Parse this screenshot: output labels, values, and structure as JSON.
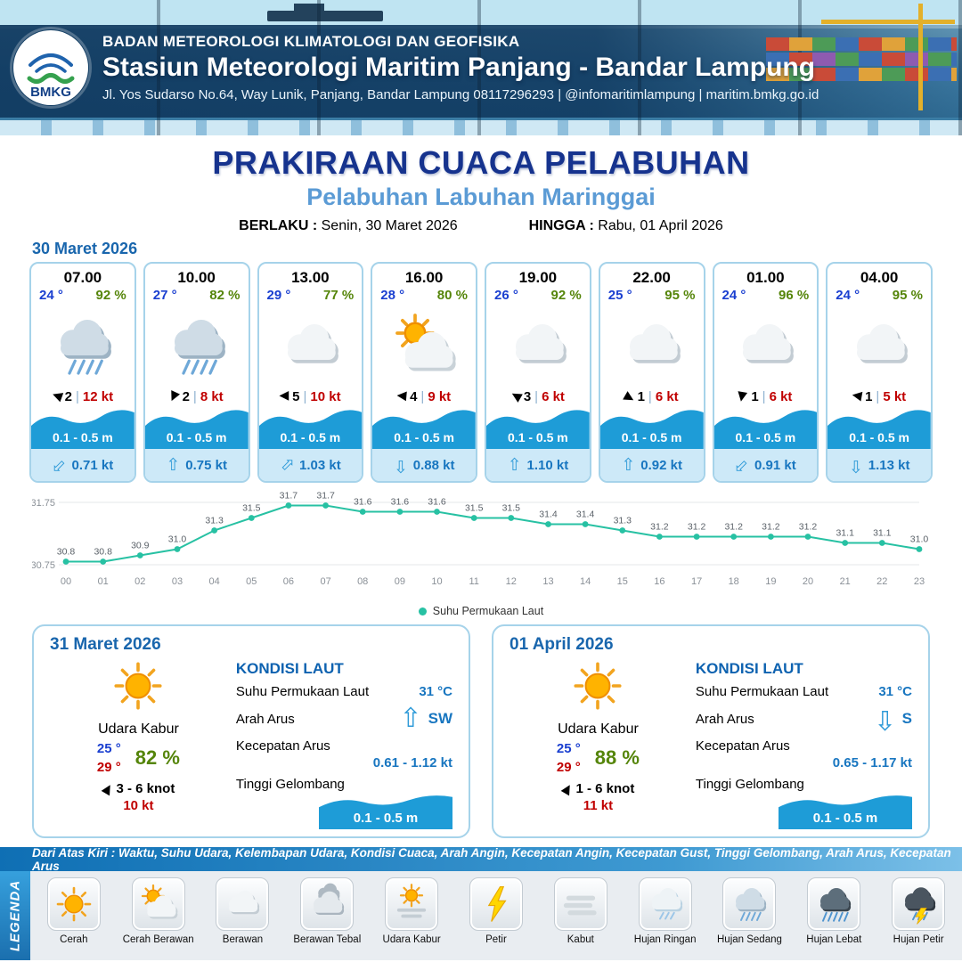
{
  "header": {
    "agency": "BADAN METEOROLOGI KLIMATOLOGI DAN GEOFISIKA",
    "station": "Stasiun Meteorologi Maritim Panjang - Bandar Lampung",
    "address": "Jl. Yos Sudarso No.64, Way Lunik, Panjang, Bandar Lampung 08117296293 | @infomaritimlampung | maritim.bmkg.go.id",
    "logo_text": "BMKG"
  },
  "title": {
    "main": "PRAKIRAAN CUACA PELABUHAN",
    "subtitle": "Pelabuhan Labuhan Maringgai",
    "valid_from_label": "BERLAKU :",
    "valid_from": "Senin, 30 Maret 2026",
    "valid_to_label": "HINGGA :",
    "valid_to": "Rabu, 01 April 2026"
  },
  "forecast_date": "30 Maret 2026",
  "ui": {
    "separator": "|"
  },
  "icons": {
    "triangle": "▶",
    "up_arrow": "⇧"
  },
  "colors": {
    "accent_blue": "#1966ad",
    "wave_blue": "#1e9cd7",
    "temp_blue": "#1a3fd0",
    "humidity_green": "#55850a",
    "gust_red": "#c00000",
    "sst_line": "#27c1a3"
  },
  "cards": [
    {
      "time": "07.00",
      "temp": "24 °",
      "humidity": "92 %",
      "icon": "rain",
      "wind_arrow_deg": 200,
      "wind": "2",
      "gust": "12 kt",
      "wave": "0.1 - 0.5 m",
      "current_arrow_deg": 225,
      "current": "0.71 kt"
    },
    {
      "time": "10.00",
      "temp": "27 °",
      "humidity": "82 %",
      "icon": "rain",
      "wind_arrow_deg": 115,
      "wind": "2",
      "gust": "8 kt",
      "wave": "0.1 - 0.5 m",
      "current_arrow_deg": 0,
      "current": "0.75 kt"
    },
    {
      "time": "13.00",
      "temp": "29 °",
      "humidity": "77 %",
      "icon": "cloudy",
      "wind_arrow_deg": 180,
      "wind": "5",
      "gust": "10 kt",
      "wave": "0.1 - 0.5 m",
      "current_arrow_deg": 45,
      "current": "1.03 kt"
    },
    {
      "time": "16.00",
      "temp": "28 °",
      "humidity": "80 %",
      "icon": "sun-cloud",
      "wind_arrow_deg": 185,
      "wind": "4",
      "gust": "9 kt",
      "wave": "0.1 - 0.5 m",
      "current_arrow_deg": 180,
      "current": "0.88 kt"
    },
    {
      "time": "19.00",
      "temp": "26 °",
      "humidity": "92 %",
      "icon": "cloudy",
      "wind_arrow_deg": 210,
      "wind": "3",
      "gust": "6 kt",
      "wave": "0.1 - 0.5 m",
      "current_arrow_deg": 0,
      "current": "1.10 kt"
    },
    {
      "time": "22.00",
      "temp": "25 °",
      "humidity": "95 %",
      "icon": "cloudy",
      "wind_arrow_deg": 30,
      "wind": "1",
      "gust": "6 kt",
      "wave": "0.1 - 0.5 m",
      "current_arrow_deg": 0,
      "current": "0.92 kt"
    },
    {
      "time": "01.00",
      "temp": "24 °",
      "humidity": "96 %",
      "icon": "cloudy",
      "wind_arrow_deg": 100,
      "wind": "1",
      "gust": "6 kt",
      "wave": "0.1 - 0.5 m",
      "current_arrow_deg": 225,
      "current": "0.91 kt"
    },
    {
      "time": "04.00",
      "temp": "24 °",
      "humidity": "95 %",
      "icon": "cloudy",
      "wind_arrow_deg": 190,
      "wind": "1",
      "gust": "5 kt",
      "wave": "0.1 - 0.5 m",
      "current_arrow_deg": 180,
      "current": "1.13 kt"
    }
  ],
  "chart_data": {
    "type": "line",
    "title": "Suhu Permukaan Laut",
    "x": [
      "00",
      "01",
      "02",
      "03",
      "04",
      "05",
      "06",
      "07",
      "08",
      "09",
      "10",
      "11",
      "12",
      "13",
      "14",
      "15",
      "16",
      "17",
      "18",
      "19",
      "20",
      "21",
      "22",
      "23"
    ],
    "series": [
      {
        "name": "Suhu Permukaan Laut",
        "values": [
          30.8,
          30.8,
          30.9,
          31.0,
          31.3,
          31.5,
          31.7,
          31.7,
          31.6,
          31.6,
          31.6,
          31.5,
          31.5,
          31.4,
          31.4,
          31.3,
          31.2,
          31.2,
          31.2,
          31.2,
          31.2,
          31.1,
          31.1,
          31.0
        ]
      }
    ],
    "ylim": [
      30.75,
      31.75
    ],
    "yticks": [
      "31.75",
      "30.75"
    ],
    "line_color": "#27c1a3",
    "legend_position": "bottom",
    "grid": "two horizontal lines"
  },
  "outlook": [
    {
      "date": "31 Maret 2026",
      "condition": "Udara Kabur",
      "temp_min": "25 °",
      "temp_max": "29 °",
      "humidity": "82 %",
      "wind": "3 - 6 knot",
      "wind_arrow_deg": 300,
      "gust": "10 kt",
      "sea": {
        "heading": "KONDISI LAUT",
        "sst_label": "Suhu Permukaan Laut",
        "sst": "31 °C",
        "dir_label": "Arah Arus",
        "dir": "SW",
        "arrow_deg": 0,
        "speed_label": "Kecepatan Arus",
        "speed": "0.61 - 1.12 kt",
        "wave_label": "Tinggi Gelombang",
        "wave": "0.1 - 0.5 m"
      }
    },
    {
      "date": "01 April 2026",
      "condition": "Udara Kabur",
      "temp_min": "25 °",
      "temp_max": "29 °",
      "humidity": "88 %",
      "wind": "1 - 6 knot",
      "wind_arrow_deg": 300,
      "gust": "11 kt",
      "sea": {
        "heading": "KONDISI LAUT",
        "sst_label": "Suhu Permukaan Laut",
        "sst": "31 °C",
        "dir_label": "Arah Arus",
        "dir": "S",
        "arrow_deg": 180,
        "speed_label": "Kecepatan Arus",
        "speed": "0.65 - 1.17 kt",
        "wave_label": "Tinggi Gelombang",
        "wave": "0.1 - 0.5 m"
      }
    }
  ],
  "legend": {
    "label": "LEGENDA",
    "note": "Dari Atas Kiri : Waktu, Suhu Udara, Kelembapan Udara, Kondisi Cuaca, Arah Angin, Kecepatan Angin, Kecepatan Gust, Tinggi Gelombang, Arah Arus, Kecepatan Arus",
    "items": [
      {
        "label": "Cerah",
        "icon": "sun"
      },
      {
        "label": "Cerah Berawan",
        "icon": "sun-cloud"
      },
      {
        "label": "Berawan",
        "icon": "cloudy"
      },
      {
        "label": "Berawan Tebal",
        "icon": "cloudy-thick"
      },
      {
        "label": "Udara Kabur",
        "icon": "haze"
      },
      {
        "label": "Petir",
        "icon": "storm"
      },
      {
        "label": "Kabut",
        "icon": "fog"
      },
      {
        "label": "Hujan Ringan",
        "icon": "rain-light"
      },
      {
        "label": "Hujan Sedang",
        "icon": "rain"
      },
      {
        "label": "Hujan Lebat",
        "icon": "rain-heavy"
      },
      {
        "label": "Hujan Petir",
        "icon": "rain-storm"
      }
    ]
  }
}
